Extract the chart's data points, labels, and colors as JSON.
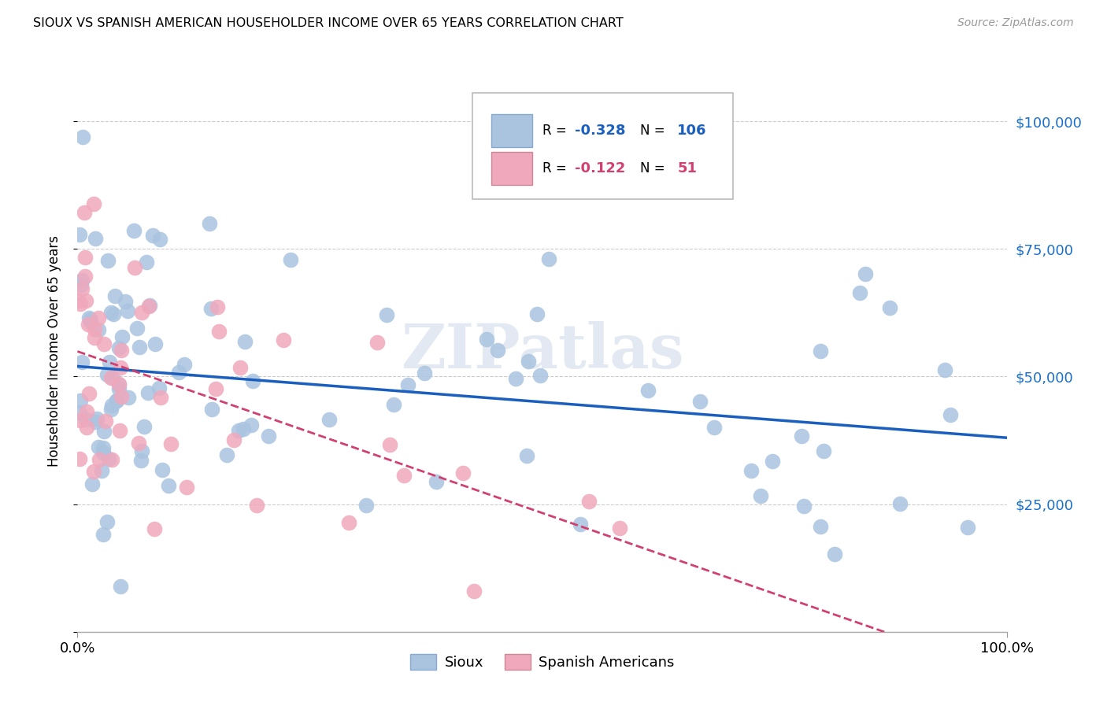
{
  "title": "SIOUX VS SPANISH AMERICAN HOUSEHOLDER INCOME OVER 65 YEARS CORRELATION CHART",
  "source": "Source: ZipAtlas.com",
  "ylabel": "Householder Income Over 65 years",
  "r_sioux": "-0.328",
  "n_sioux": "106",
  "r_spanish": "-0.122",
  "n_spanish": "51",
  "sioux_color": "#aac4e0",
  "spanish_color": "#f0a8bc",
  "sioux_line_color": "#1a5fbe",
  "spanish_line_color": "#d04070",
  "watermark": "ZIPatlas",
  "background_color": "#ffffff",
  "grid_color": "#cccccc",
  "xlim": [
    0.0,
    1.0
  ],
  "ylim": [
    0,
    110000
  ],
  "yticks": [
    0,
    25000,
    50000,
    75000,
    100000
  ],
  "ytick_labels": [
    "",
    "$25,000",
    "$50,000",
    "$75,000",
    "$100,000"
  ]
}
